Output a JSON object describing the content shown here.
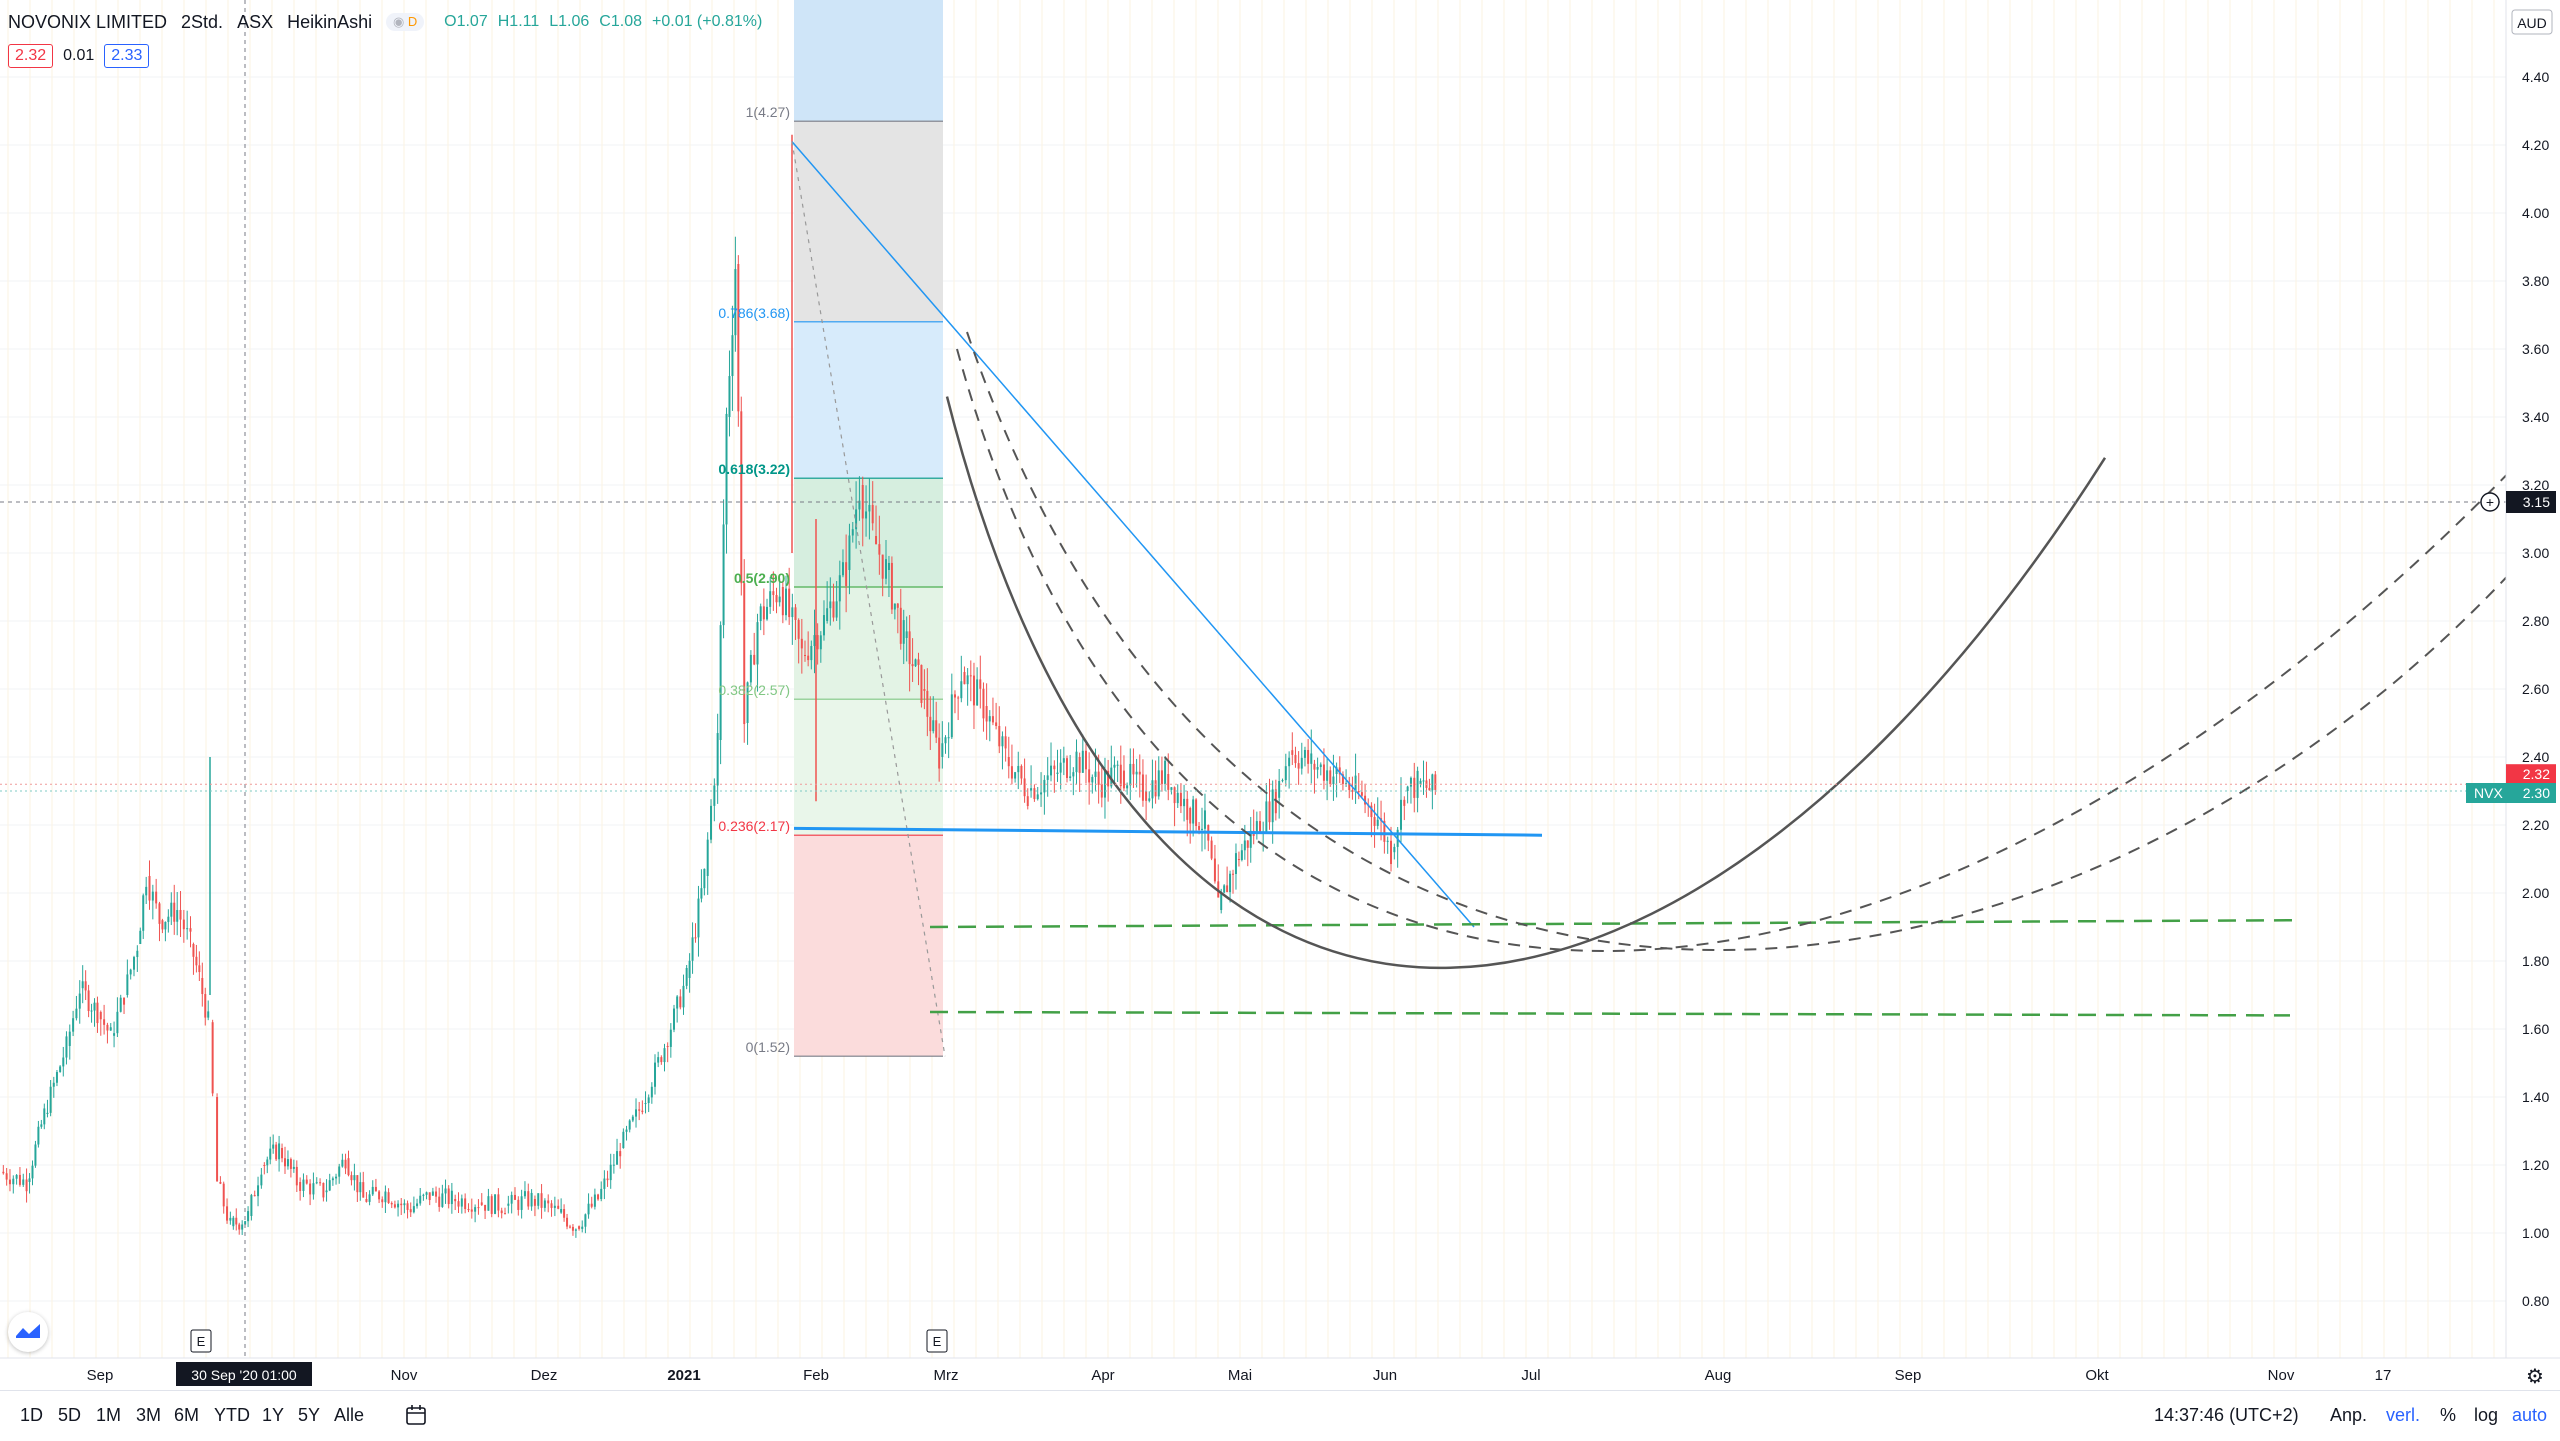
{
  "legend": {
    "symbol": "NOVONIX LIMITED",
    "interval": "2Std.",
    "exchange": "ASX",
    "chart_style": "HeikinAshi",
    "badge": "D",
    "open": "O1.07",
    "high": "H1.11",
    "low": "L1.06",
    "close": "C1.08",
    "change": "+0.01 (+0.81%)",
    "bid": "2.32",
    "spread": "0.01",
    "ask": "2.33"
  },
  "price_axis": {
    "currency": "AUD",
    "ticks": [
      "4.40",
      "4.20",
      "4.00",
      "3.80",
      "3.60",
      "3.40",
      "3.20",
      "3.00",
      "2.80",
      "2.60",
      "2.40",
      "2.20",
      "2.00",
      "1.80",
      "1.60",
      "1.40",
      "1.20",
      "1.00",
      "0.80"
    ],
    "crosshair_price": "3.15",
    "last_price_tag": "2.32",
    "symbol_tag": "NVX",
    "symbol_price": "2.30"
  },
  "time_axis": {
    "labels": [
      {
        "text": "Sep",
        "bold": false
      },
      {
        "text": "Nov",
        "bold": false
      },
      {
        "text": "Dez",
        "bold": false
      },
      {
        "text": "2021",
        "bold": true
      },
      {
        "text": "Feb",
        "bold": false
      },
      {
        "text": "Mrz",
        "bold": false
      },
      {
        "text": "Apr",
        "bold": false
      },
      {
        "text": "Mai",
        "bold": false
      },
      {
        "text": "Jun",
        "bold": false
      },
      {
        "text": "Jul",
        "bold": false
      },
      {
        "text": "Aug",
        "bold": false
      },
      {
        "text": "Sep",
        "bold": false
      },
      {
        "text": "Okt",
        "bold": false
      },
      {
        "text": "Nov",
        "bold": false
      },
      {
        "text": "17",
        "bold": false
      }
    ],
    "crosshair_time": "30 Sep '20   01:00",
    "earnings_marker": "E"
  },
  "fib_levels": [
    {
      "label": "1(4.27)",
      "color": "#787b86",
      "bold": false
    },
    {
      "label": "0.786(3.68)",
      "color": "#2196f3",
      "bold": false
    },
    {
      "label": "0.618(3.22)",
      "color": "#009688",
      "bold": true
    },
    {
      "label": "0.5(2.90)",
      "color": "#4caf50",
      "bold": true
    },
    {
      "label": "0.382(2.57)",
      "color": "#81c784",
      "bold": false
    },
    {
      "label": "0.236(2.17)",
      "color": "#f23645",
      "bold": false
    },
    {
      "label": "0(1.52)",
      "color": "#787b86",
      "bold": false
    }
  ],
  "bottom_toolbar": {
    "ranges": [
      "1D",
      "5D",
      "1M",
      "3M",
      "6M",
      "YTD",
      "1Y",
      "5Y",
      "Alle"
    ],
    "clock": "14:37:46 (UTC+2)",
    "adjust": "Anp.",
    "extended": "verl.",
    "percent": "%",
    "log": "log",
    "auto": "auto"
  },
  "colors": {
    "up": "#26a69a",
    "down": "#ef5350",
    "crosshair": "#787b86",
    "accent": "#2962ff"
  },
  "chart_data": {
    "type": "candlestick",
    "title": "NOVONIX LIMITED, 2Std., ASX, HeikinAshi",
    "ylim": [
      0.7,
      4.5
    ],
    "price_path": [
      [
        "2020-08-10",
        1.18
      ],
      [
        "2020-08-16",
        1.15
      ],
      [
        "2020-08-20",
        1.35
      ],
      [
        "2020-08-25",
        1.55
      ],
      [
        "2020-08-28",
        1.72
      ],
      [
        "2020-09-01",
        1.65
      ],
      [
        "2020-09-04",
        1.58
      ],
      [
        "2020-09-07",
        1.7
      ],
      [
        "2020-09-10",
        1.85
      ],
      [
        "2020-09-12",
        2.05
      ],
      [
        "2020-09-15",
        1.92
      ],
      [
        "2020-09-19",
        1.95
      ],
      [
        "2020-09-22",
        1.85
      ],
      [
        "2020-09-24",
        1.75
      ],
      [
        "2020-09-26",
        1.62
      ],
      [
        "2020-09-27",
        1.4
      ],
      [
        "2020-09-28",
        1.15
      ],
      [
        "2020-10-01",
        1.02
      ],
      [
        "2020-10-05",
        1.05
      ],
      [
        "2020-10-08",
        1.2
      ],
      [
        "2020-10-12",
        1.25
      ],
      [
        "2020-10-16",
        1.15
      ],
      [
        "2020-10-22",
        1.12
      ],
      [
        "2020-10-27",
        1.22
      ],
      [
        "2020-10-31",
        1.1
      ],
      [
        "2020-11-05",
        1.12
      ],
      [
        "2020-11-10",
        1.07
      ],
      [
        "2020-11-15",
        1.11
      ],
      [
        "2020-11-20",
        1.1
      ],
      [
        "2020-11-26",
        1.09
      ],
      [
        "2020-12-02",
        1.08
      ],
      [
        "2020-12-08",
        1.1
      ],
      [
        "2020-12-14",
        1.06
      ],
      [
        "2020-12-18",
        1.02
      ],
      [
        "2020-12-23",
        1.1
      ],
      [
        "2020-12-28",
        1.25
      ],
      [
        "2021-01-02",
        1.38
      ],
      [
        "2021-01-07",
        1.55
      ],
      [
        "2021-01-12",
        1.75
      ],
      [
        "2021-01-16",
        2.05
      ],
      [
        "2021-01-19",
        2.45
      ],
      [
        "2021-01-21",
        3.4
      ],
      [
        "2021-01-23",
        3.85
      ],
      [
        "2021-01-25",
        2.5
      ],
      [
        "2021-01-28",
        2.8
      ],
      [
        "2021-02-02",
        2.9
      ],
      [
        "2021-02-07",
        2.7
      ],
      [
        "2021-02-12",
        2.8
      ],
      [
        "2021-02-17",
        2.95
      ],
      [
        "2021-02-20",
        3.2
      ],
      [
        "2021-02-23",
        3.05
      ],
      [
        "2021-02-26",
        2.95
      ],
      [
        "2021-03-02",
        2.75
      ],
      [
        "2021-03-06",
        2.6
      ],
      [
        "2021-03-10",
        2.4
      ],
      [
        "2021-03-15",
        2.65
      ],
      [
        "2021-03-20",
        2.55
      ],
      [
        "2021-03-25",
        2.4
      ],
      [
        "2021-03-30",
        2.3
      ],
      [
        "2021-04-05",
        2.35
      ],
      [
        "2021-04-10",
        2.4
      ],
      [
        "2021-04-15",
        2.32
      ],
      [
        "2021-04-20",
        2.36
      ],
      [
        "2021-04-25",
        2.3
      ],
      [
        "2021-04-30",
        2.35
      ],
      [
        "2021-05-05",
        2.25
      ],
      [
        "2021-05-09",
        2.2
      ],
      [
        "2021-05-12",
        1.95
      ],
      [
        "2021-05-16",
        2.1
      ],
      [
        "2021-05-20",
        2.18
      ],
      [
        "2021-05-25",
        2.28
      ],
      [
        "2021-05-28",
        2.42
      ],
      [
        "2021-06-02",
        2.38
      ],
      [
        "2021-06-07",
        2.35
      ],
      [
        "2021-06-12",
        2.3
      ],
      [
        "2021-06-17",
        2.22
      ],
      [
        "2021-06-20",
        2.12
      ],
      [
        "2021-06-23",
        2.3
      ],
      [
        "2021-06-26",
        2.32
      ],
      [
        "2021-06-30",
        2.3
      ]
    ],
    "last_price": 2.3,
    "fibonacci": {
      "high": 4.27,
      "low": 1.52
    },
    "support_line": 2.18
  }
}
